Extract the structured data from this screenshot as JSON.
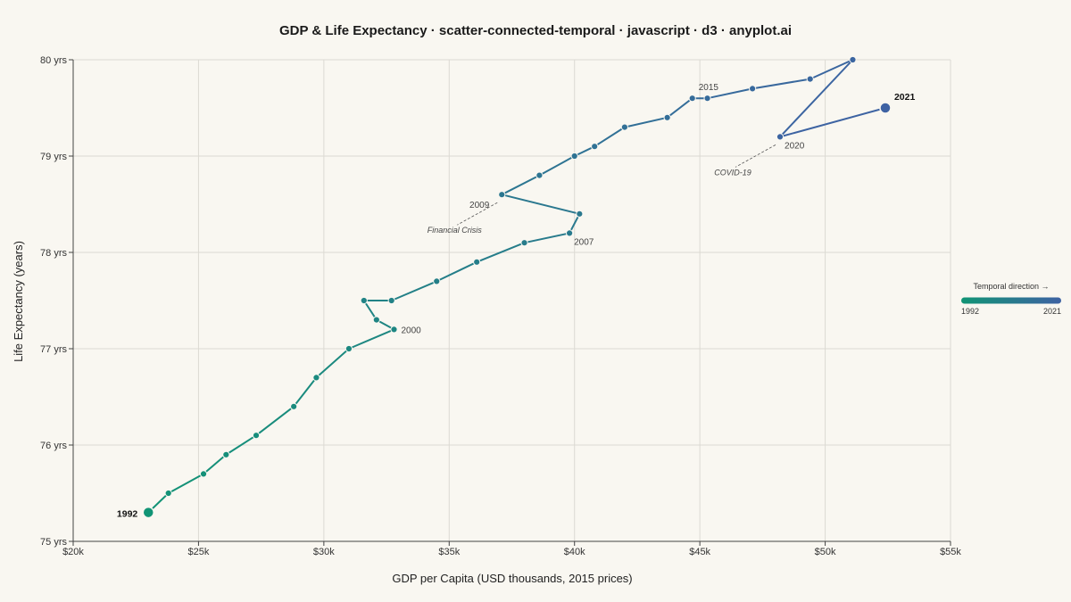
{
  "chart_data": {
    "type": "scatter",
    "title": "GDP & Life Expectancy · scatter-connected-temporal · javascript · d3 · anyplot.ai",
    "xlabel": "GDP per Capita (USD thousands, 2015 prices)",
    "ylabel": "Life Expectancy (years)",
    "xlim": [
      20,
      55
    ],
    "ylim": [
      75,
      80
    ],
    "x_ticks": [
      20,
      25,
      30,
      35,
      40,
      45,
      50,
      55
    ],
    "x_tick_labels": [
      "$20k",
      "$25k",
      "$30k",
      "$35k",
      "$40k",
      "$45k",
      "$50k",
      "$55k"
    ],
    "y_ticks": [
      75,
      76,
      77,
      78,
      79,
      80
    ],
    "y_tick_labels": [
      "75 yrs",
      "76 yrs",
      "77 yrs",
      "78 yrs",
      "79 yrs",
      "80 yrs"
    ],
    "grid": true,
    "colors": {
      "start": "#119475",
      "end": "#3E62A3"
    },
    "points": [
      {
        "year": 1992,
        "x": 23.0,
        "y": 75.3
      },
      {
        "year": 1993,
        "x": 23.8,
        "y": 75.5
      },
      {
        "year": 1994,
        "x": 25.2,
        "y": 75.7
      },
      {
        "year": 1995,
        "x": 26.1,
        "y": 75.9
      },
      {
        "year": 1996,
        "x": 27.3,
        "y": 76.1
      },
      {
        "year": 1997,
        "x": 28.8,
        "y": 76.4
      },
      {
        "year": 1998,
        "x": 29.7,
        "y": 76.7
      },
      {
        "year": 1999,
        "x": 31.0,
        "y": 77.0
      },
      {
        "year": 2000,
        "x": 32.8,
        "y": 77.2
      },
      {
        "year": 2001,
        "x": 32.1,
        "y": 77.3
      },
      {
        "year": 2002,
        "x": 31.6,
        "y": 77.5
      },
      {
        "year": 2003,
        "x": 32.7,
        "y": 77.5
      },
      {
        "year": 2004,
        "x": 34.5,
        "y": 77.7
      },
      {
        "year": 2005,
        "x": 36.1,
        "y": 77.9
      },
      {
        "year": 2006,
        "x": 38.0,
        "y": 78.1
      },
      {
        "year": 2007,
        "x": 39.8,
        "y": 78.2
      },
      {
        "year": 2008,
        "x": 40.2,
        "y": 78.4
      },
      {
        "year": 2009,
        "x": 37.1,
        "y": 78.6
      },
      {
        "year": 2010,
        "x": 38.6,
        "y": 78.8
      },
      {
        "year": 2011,
        "x": 40.0,
        "y": 79.0
      },
      {
        "year": 2012,
        "x": 40.8,
        "y": 79.1
      },
      {
        "year": 2013,
        "x": 42.0,
        "y": 79.3
      },
      {
        "year": 2014,
        "x": 43.7,
        "y": 79.4
      },
      {
        "year": 2015,
        "x": 44.7,
        "y": 79.6
      },
      {
        "year": 2016,
        "x": 45.3,
        "y": 79.6
      },
      {
        "year": 2017,
        "x": 47.1,
        "y": 79.7
      },
      {
        "year": 2018,
        "x": 49.4,
        "y": 79.8
      },
      {
        "year": 2019,
        "x": 51.1,
        "y": 80.0
      },
      {
        "year": 2020,
        "x": 48.2,
        "y": 79.2
      },
      {
        "year": 2021,
        "x": 52.4,
        "y": 79.5
      }
    ],
    "year_labels": [
      {
        "year": 2000,
        "text": "2000",
        "placement": "right"
      },
      {
        "year": 2007,
        "text": "2007",
        "placement": "right-below"
      },
      {
        "year": 2009,
        "text": "2009",
        "placement": "left-below"
      },
      {
        "year": 2015,
        "text": "2015",
        "placement": "above-right"
      },
      {
        "year": 2020,
        "text": "2020",
        "placement": "right-below"
      }
    ],
    "end_labels": [
      {
        "year": 1992,
        "text": "1992",
        "placement": "left"
      },
      {
        "year": 2021,
        "text": "2021",
        "placement": "above-right"
      }
    ],
    "annotations": [
      {
        "year": 2009,
        "text": "Financial Crisis",
        "placement": "below-left"
      },
      {
        "year": 2020,
        "text": "COVID-19",
        "placement": "below-left"
      }
    ],
    "legend": {
      "title": "Temporal direction →",
      "start_label": "1992",
      "end_label": "2021",
      "placement": "right"
    }
  }
}
